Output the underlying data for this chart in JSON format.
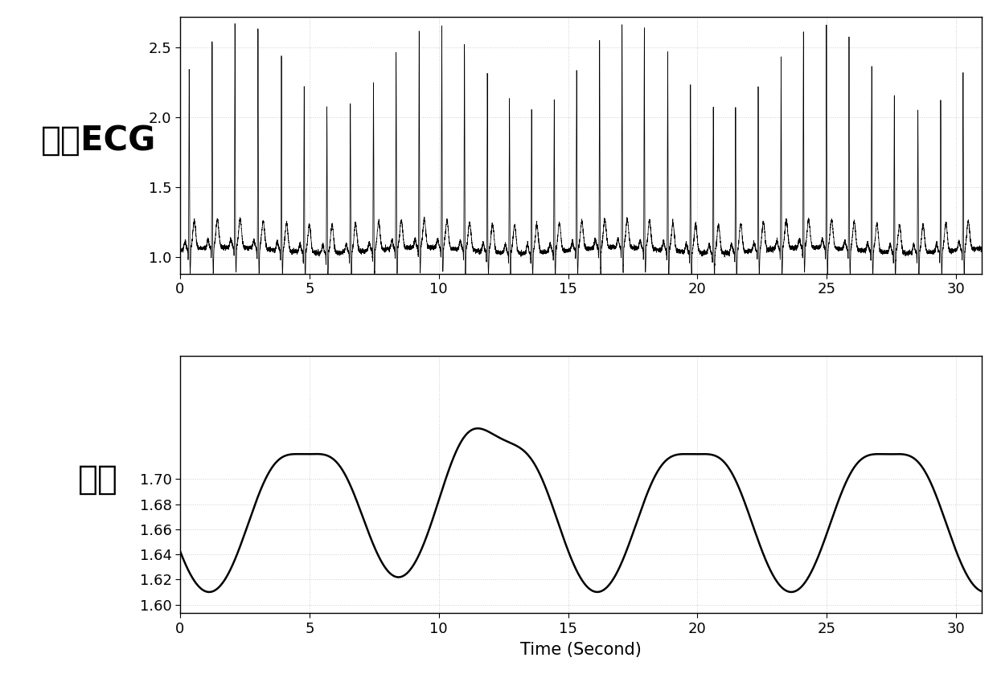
{
  "ecg_xlim": [
    0,
    31
  ],
  "ecg_ylim": [
    0.88,
    2.72
  ],
  "ecg_yticks": [
    1.0,
    1.5,
    2.0,
    2.5
  ],
  "ecg_xticks": [
    0,
    5,
    10,
    15,
    20,
    25,
    30
  ],
  "resp_xlim": [
    0,
    31
  ],
  "resp_ylim": [
    1.593,
    1.798
  ],
  "resp_yticks": [
    1.6,
    1.62,
    1.64,
    1.66,
    1.68,
    1.7
  ],
  "resp_xticks": [
    0,
    5,
    10,
    15,
    20,
    25,
    30
  ],
  "xlabel": "Time (Second)",
  "ecg_label": "心电ECG",
  "resp_label": "呼吸",
  "line_color": "#000000",
  "background_color": "#ffffff",
  "grid_color": "#c8c8c8",
  "ecg_hr": 68,
  "ecg_fs": 360,
  "ecg_duration": 31,
  "resp_fs": 200,
  "resp_duration": 31,
  "resp_period": 7.5,
  "resp_baseline": 1.648,
  "resp_amplitude": 0.058,
  "resp_peak1": 3.0,
  "resp_peak2": 10.5,
  "resp_peak3": 18.0,
  "resp_peak4": 25.5,
  "resp_trough1": 7.0,
  "resp_trough2": 15.5,
  "resp_trough3": 23.0
}
